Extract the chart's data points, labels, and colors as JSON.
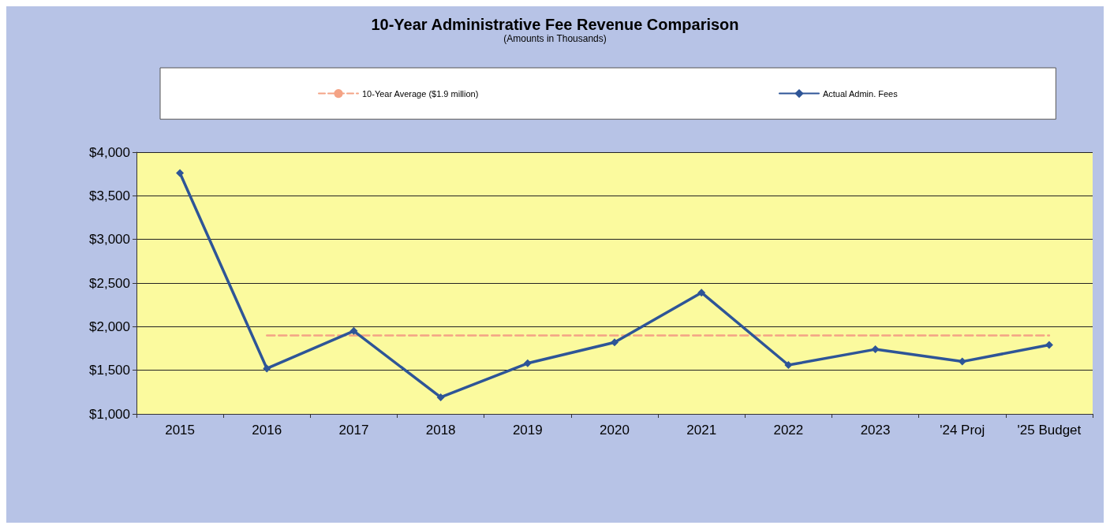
{
  "chart_data": {
    "type": "line",
    "title": "10-Year Administrative Fee Revenue Comparison",
    "subtitle": "(Amounts in Thousands)",
    "categories": [
      "2015",
      "2016",
      "2017",
      "2018",
      "2019",
      "2020",
      "2021",
      "2022",
      "2023",
      "'24 Proj",
      "'25 Budget"
    ],
    "series": [
      {
        "name": "10-Year Average ($1.9 million)",
        "color": "#f4a385",
        "line_style": "dashed",
        "marker": "none",
        "values": [
          null,
          1900,
          1900,
          1900,
          1900,
          1900,
          1900,
          1900,
          1900,
          1900,
          1900
        ]
      },
      {
        "name": "Actual Admin. Fees",
        "color": "#2e5597",
        "line_style": "solid",
        "marker": "diamond",
        "values": [
          3760,
          1520,
          1950,
          1190,
          1580,
          1820,
          2390,
          1560,
          1740,
          1600,
          1790
        ]
      }
    ],
    "ylim": [
      1000,
      4000
    ],
    "yticks": [
      {
        "value": 1000,
        "label": "$1,000"
      },
      {
        "value": 1500,
        "label": "$1,500"
      },
      {
        "value": 2000,
        "label": "$2,000"
      },
      {
        "value": 2500,
        "label": "$2,500"
      },
      {
        "value": 3000,
        "label": "$3,000"
      },
      {
        "value": 3500,
        "label": "$3,500"
      },
      {
        "value": 4000,
        "label": "$4,000"
      }
    ],
    "grid": "y",
    "legend": "top"
  }
}
